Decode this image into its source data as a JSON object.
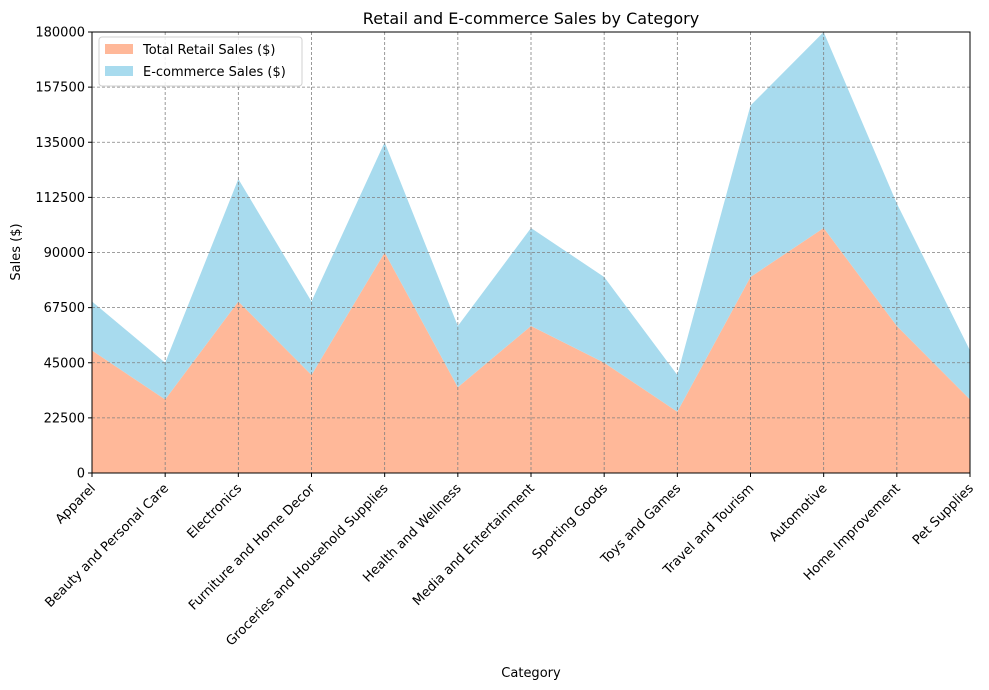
{
  "chart_data": {
    "type": "area",
    "stacked": true,
    "title": "Retail and E-commerce Sales by Category",
    "xlabel": "Category",
    "ylabel": "Sales ($)",
    "ylim": [
      0,
      180000
    ],
    "yticks": [
      "0",
      "22500",
      "45000",
      "67500",
      "90000",
      "112500",
      "135000",
      "157500",
      "180000"
    ],
    "grid": true,
    "legend_position": "top-left",
    "categories": [
      "Apparel",
      "Beauty and Personal Care",
      "Electronics",
      "Furniture and Home Decor",
      "Groceries and Household Supplies",
      "Health and Wellness",
      "Media and Entertainment",
      "Sporting Goods",
      "Toys and Games",
      "Travel and Tourism",
      "Automotive",
      "Home Improvement",
      "Pet Supplies"
    ],
    "series": [
      {
        "name": "Total Retail Sales ($)",
        "color": "#ffb899",
        "values": [
          50000,
          30000,
          70000,
          40000,
          90000,
          35000,
          60000,
          45000,
          25000,
          80000,
          100000,
          60000,
          30000
        ]
      },
      {
        "name": "E-commerce Sales ($)",
        "color": "#a8dbee",
        "values": [
          20000,
          15000,
          50000,
          30000,
          45000,
          25000,
          40000,
          35000,
          15000,
          70000,
          80000,
          50000,
          20000
        ]
      }
    ]
  }
}
